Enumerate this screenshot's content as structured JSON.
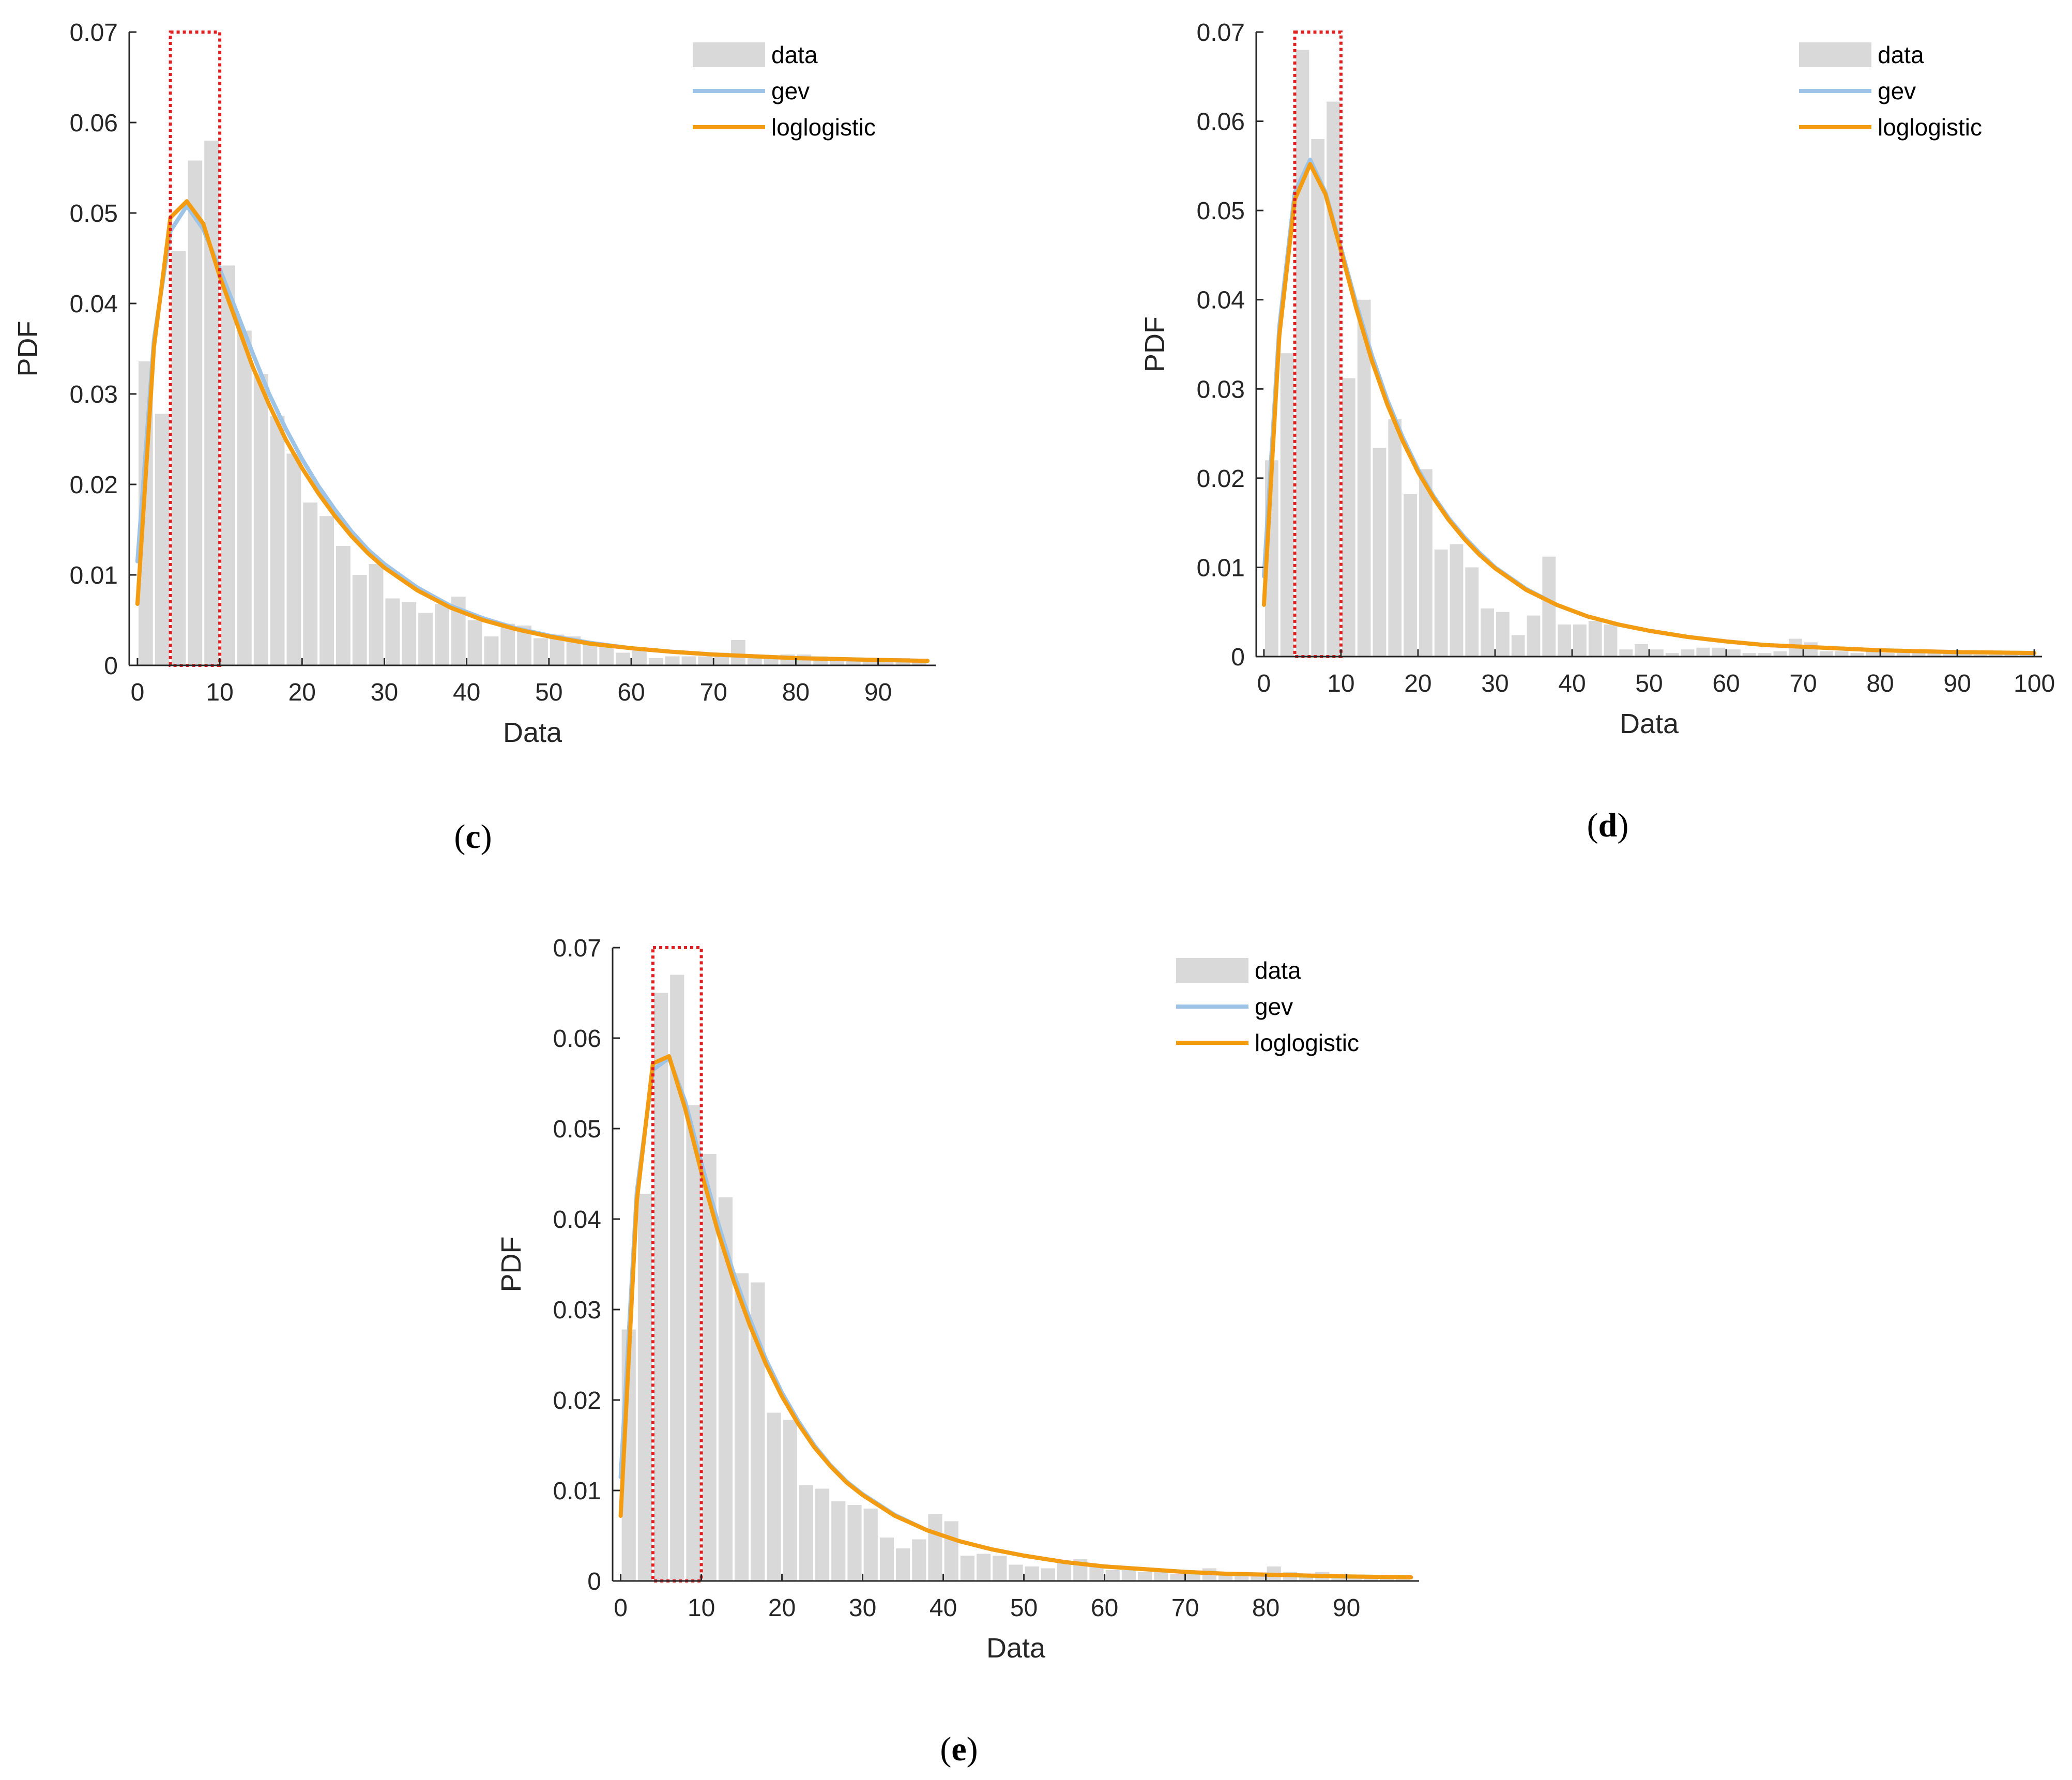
{
  "chart_data": [
    {
      "type": "bar",
      "panel_label_open": "(",
      "panel_letter": "c",
      "panel_label_close": ")",
      "xlabel": "Data",
      "ylabel": "PDF",
      "xlim": [
        -1,
        97
      ],
      "ylim": [
        0,
        0.07
      ],
      "xticks": [
        "0",
        "10",
        "20",
        "30",
        "40",
        "50",
        "60",
        "70",
        "80",
        "90"
      ],
      "xtick_values": [
        0,
        10,
        20,
        30,
        40,
        50,
        60,
        70,
        80,
        90
      ],
      "yticks": [
        "0",
        "0.01",
        "0.02",
        "0.03",
        "0.04",
        "0.05",
        "0.06",
        "0.07"
      ],
      "ytick_values": [
        0,
        0.01,
        0.02,
        0.03,
        0.04,
        0.05,
        0.06,
        0.07
      ],
      "bin_start": 0,
      "bin_width": 2,
      "values": [
        0.0336,
        0.0278,
        0.0458,
        0.0558,
        0.058,
        0.0442,
        0.037,
        0.0322,
        0.0276,
        0.0234,
        0.018,
        0.0165,
        0.0132,
        0.01,
        0.0112,
        0.0074,
        0.007,
        0.0058,
        0.0068,
        0.0076,
        0.005,
        0.0032,
        0.0046,
        0.0044,
        0.003,
        0.0034,
        0.0032,
        0.0024,
        0.002,
        0.0014,
        0.0018,
        0.0008,
        0.001,
        0.001,
        0.001,
        0.0014,
        0.0028,
        0.001,
        0.0008,
        0.0012,
        0.0012,
        0.001,
        0.0006,
        0.0006,
        0.0006,
        0.0006,
        0.0008,
        0.0006
      ],
      "highlight_box": {
        "x0": 4,
        "x1": 10,
        "y0": 0,
        "y1": 0.07
      },
      "series": [
        {
          "name": "gev",
          "color": "#9dc3e6",
          "x": [
            0,
            2,
            4,
            6,
            8,
            10,
            12,
            14,
            16,
            18,
            20,
            22,
            24,
            26,
            28,
            30,
            34,
            38,
            42,
            46,
            50,
            55,
            60,
            65,
            70,
            75,
            80,
            85,
            90,
            96
          ],
          "y": [
            0.0115,
            0.036,
            0.048,
            0.0508,
            0.0482,
            0.0438,
            0.0392,
            0.0345,
            0.03,
            0.0262,
            0.0228,
            0.0198,
            0.0172,
            0.0148,
            0.0128,
            0.0112,
            0.0086,
            0.0066,
            0.0052,
            0.0041,
            0.0033,
            0.0025,
            0.0019,
            0.0015,
            0.0012,
            0.001,
            0.0008,
            0.0007,
            0.0006,
            0.0005
          ]
        },
        {
          "name": "loglogistic",
          "color": "#f39c12",
          "x": [
            0,
            2,
            4,
            6,
            8,
            10,
            12,
            14,
            16,
            18,
            20,
            22,
            24,
            26,
            28,
            30,
            34,
            38,
            42,
            46,
            50,
            55,
            60,
            65,
            70,
            75,
            80,
            85,
            90,
            96
          ],
          "y": [
            0.0068,
            0.0352,
            0.0495,
            0.0513,
            0.0488,
            0.043,
            0.038,
            0.033,
            0.0288,
            0.025,
            0.0218,
            0.019,
            0.0165,
            0.0143,
            0.0124,
            0.0108,
            0.0083,
            0.0064,
            0.005,
            0.004,
            0.0032,
            0.0024,
            0.0019,
            0.0015,
            0.0012,
            0.001,
            0.0008,
            0.0007,
            0.0006,
            0.0005
          ]
        }
      ],
      "legend": [
        "data",
        "gev",
        "loglogistic"
      ],
      "legend_position": "top-right",
      "colors": {
        "bar": "#d9d9d9",
        "box": "#e02020"
      }
    },
    {
      "type": "bar",
      "panel_label_open": "(",
      "panel_letter": "d",
      "panel_label_close": ")",
      "xlabel": "Data",
      "ylabel": "PDF",
      "xlim": [
        -1,
        101
      ],
      "ylim": [
        0,
        0.07
      ],
      "xticks": [
        "0",
        "10",
        "20",
        "30",
        "40",
        "50",
        "60",
        "70",
        "80",
        "90",
        "100"
      ],
      "xtick_values": [
        0,
        10,
        20,
        30,
        40,
        50,
        60,
        70,
        80,
        90,
        100
      ],
      "yticks": [
        "0",
        "0.01",
        "0.02",
        "0.03",
        "0.04",
        "0.05",
        "0.06",
        "0.07"
      ],
      "ytick_values": [
        0,
        0.01,
        0.02,
        0.03,
        0.04,
        0.05,
        0.06,
        0.07
      ],
      "bin_start": 0,
      "bin_width": 2,
      "values": [
        0.022,
        0.034,
        0.068,
        0.058,
        0.0622,
        0.0312,
        0.04,
        0.0234,
        0.0266,
        0.0182,
        0.021,
        0.012,
        0.0126,
        0.01,
        0.0054,
        0.005,
        0.0024,
        0.0046,
        0.0112,
        0.0036,
        0.0036,
        0.004,
        0.0036,
        0.0008,
        0.0014,
        0.0008,
        0.0004,
        0.0008,
        0.001,
        0.001,
        0.0008,
        0.0004,
        0.0004,
        0.0006,
        0.002,
        0.0016,
        0.0006,
        0.0006,
        0.0004,
        0.0006,
        0.0004,
        0.0004,
        0.0004,
        0.0004,
        0.0004,
        0.0004,
        0.0002,
        0.0002,
        0.0004,
        0.0004
      ],
      "highlight_box": {
        "x0": 4,
        "x1": 10,
        "y0": 0,
        "y1": 0.07
      },
      "series": [
        {
          "name": "gev",
          "color": "#9dc3e6",
          "x": [
            0,
            2,
            4,
            6,
            8,
            10,
            12,
            14,
            16,
            18,
            20,
            22,
            24,
            26,
            28,
            30,
            34,
            38,
            42,
            46,
            50,
            55,
            60,
            65,
            70,
            75,
            80,
            85,
            90,
            100
          ],
          "y": [
            0.009,
            0.037,
            0.052,
            0.0557,
            0.052,
            0.0458,
            0.0395,
            0.0338,
            0.0288,
            0.0246,
            0.021,
            0.018,
            0.0155,
            0.0134,
            0.0116,
            0.01,
            0.0076,
            0.0058,
            0.0045,
            0.0036,
            0.0029,
            0.0022,
            0.0017,
            0.0013,
            0.0011,
            0.0009,
            0.0007,
            0.0006,
            0.0005,
            0.0004
          ]
        },
        {
          "name": "loglogistic",
          "color": "#f39c12",
          "x": [
            0,
            2,
            4,
            6,
            8,
            10,
            12,
            14,
            16,
            18,
            20,
            22,
            24,
            26,
            28,
            30,
            34,
            38,
            42,
            46,
            50,
            55,
            60,
            65,
            70,
            75,
            80,
            85,
            90,
            100
          ],
          "y": [
            0.0058,
            0.036,
            0.0512,
            0.0552,
            0.0518,
            0.0455,
            0.039,
            0.0332,
            0.0283,
            0.0242,
            0.0207,
            0.0178,
            0.0153,
            0.0132,
            0.0114,
            0.0099,
            0.0075,
            0.0058,
            0.0045,
            0.0036,
            0.0029,
            0.0022,
            0.0017,
            0.0013,
            0.0011,
            0.0009,
            0.0007,
            0.0006,
            0.0005,
            0.0004
          ]
        }
      ],
      "legend": [
        "data",
        "gev",
        "loglogistic"
      ],
      "legend_position": "top-right",
      "colors": {
        "bar": "#d9d9d9",
        "box": "#e02020"
      }
    },
    {
      "type": "bar",
      "panel_label_open": "(",
      "panel_letter": "e",
      "panel_label_close": ")",
      "xlabel": "Data",
      "ylabel": "PDF",
      "xlim": [
        -1,
        99
      ],
      "ylim": [
        0,
        0.07
      ],
      "xticks": [
        "0",
        "10",
        "20",
        "30",
        "40",
        "50",
        "60",
        "70",
        "80",
        "90"
      ],
      "xtick_values": [
        0,
        10,
        20,
        30,
        40,
        50,
        60,
        70,
        80,
        90
      ],
      "yticks": [
        "0",
        "0.01",
        "0.02",
        "0.03",
        "0.04",
        "0.05",
        "0.06",
        "0.07"
      ],
      "ytick_values": [
        0,
        0.01,
        0.02,
        0.03,
        0.04,
        0.05,
        0.06,
        0.07
      ],
      "bin_start": 0,
      "bin_width": 2,
      "values": [
        0.0278,
        0.0428,
        0.065,
        0.067,
        0.0526,
        0.0472,
        0.0424,
        0.034,
        0.033,
        0.0186,
        0.0178,
        0.0106,
        0.0102,
        0.0088,
        0.0084,
        0.008,
        0.0048,
        0.0036,
        0.0046,
        0.0074,
        0.0066,
        0.0028,
        0.003,
        0.0028,
        0.0018,
        0.0016,
        0.0014,
        0.002,
        0.0024,
        0.0018,
        0.0012,
        0.0012,
        0.001,
        0.001,
        0.0008,
        0.001,
        0.0014,
        0.001,
        0.001,
        0.0006,
        0.0016,
        0.001,
        0.0008,
        0.001,
        0.0006,
        0.0006,
        0.0004,
        0.0004,
        0.0004
      ],
      "highlight_box": {
        "x0": 4,
        "x1": 10,
        "y0": 0,
        "y1": 0.07
      },
      "series": [
        {
          "name": "gev",
          "color": "#9dc3e6",
          "x": [
            0,
            2,
            4,
            6,
            8,
            10,
            12,
            14,
            16,
            18,
            20,
            22,
            24,
            26,
            28,
            30,
            34,
            38,
            42,
            46,
            50,
            55,
            60,
            65,
            70,
            75,
            80,
            85,
            90,
            98
          ],
          "y": [
            0.0115,
            0.043,
            0.0565,
            0.0578,
            0.053,
            0.0462,
            0.0398,
            0.034,
            0.029,
            0.0245,
            0.0208,
            0.0177,
            0.015,
            0.0128,
            0.011,
            0.0096,
            0.0073,
            0.0056,
            0.0044,
            0.0035,
            0.0028,
            0.0021,
            0.0016,
            0.0013,
            0.001,
            0.0008,
            0.0007,
            0.0006,
            0.0005,
            0.0004
          ]
        },
        {
          "name": "loglogistic",
          "color": "#f39c12",
          "x": [
            0,
            2,
            4,
            6,
            8,
            10,
            12,
            14,
            16,
            18,
            20,
            22,
            24,
            26,
            28,
            30,
            34,
            38,
            42,
            46,
            50,
            55,
            60,
            65,
            70,
            75,
            80,
            85,
            90,
            98
          ],
          "y": [
            0.0072,
            0.042,
            0.0572,
            0.058,
            0.0522,
            0.0452,
            0.0388,
            0.0332,
            0.0283,
            0.024,
            0.0204,
            0.0174,
            0.0148,
            0.0127,
            0.0109,
            0.0095,
            0.0072,
            0.0056,
            0.0044,
            0.0035,
            0.0028,
            0.0021,
            0.0016,
            0.0013,
            0.001,
            0.0008,
            0.0007,
            0.0006,
            0.0005,
            0.0004
          ]
        }
      ],
      "legend": [
        "data",
        "gev",
        "loglogistic"
      ],
      "legend_position": "top-right",
      "colors": {
        "bar": "#d9d9d9",
        "box": "#e02020"
      }
    }
  ]
}
